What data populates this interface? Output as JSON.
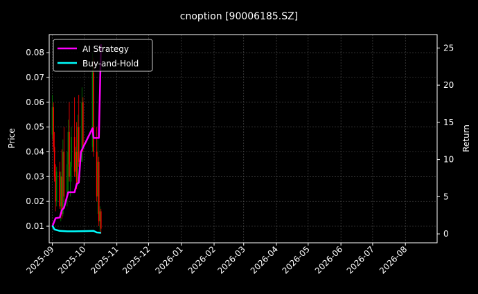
{
  "chart_data": {
    "type": "candlestick+line",
    "title": "cnoption [90006185.SZ]",
    "ylabel_left": "Price",
    "ylabel_right": "Return",
    "xlim": [
      "2025-08-29",
      "2026-08-31"
    ],
    "ylim_left": [
      0.0033,
      0.0873
    ],
    "ylim_right": [
      -1.2,
      26.8
    ],
    "grid": true,
    "legend_position": "top-left",
    "x_ticks": [
      "2025-09",
      "2025-10",
      "2025-11",
      "2025-12",
      "2026-01",
      "2026-02",
      "2026-03",
      "2026-04",
      "2026-05",
      "2026-06",
      "2026-07",
      "2026-08"
    ],
    "y_ticks_left": [
      "0.01",
      "0.02",
      "0.03",
      "0.04",
      "0.05",
      "0.06",
      "0.07",
      "0.08"
    ],
    "y_ticks_right": [
      "0",
      "5",
      "10",
      "15",
      "20",
      "25"
    ],
    "candles": [
      [
        "2025-09-01",
        0.047,
        0.063,
        0.045,
        0.058
      ],
      [
        "2025-09-02",
        0.058,
        0.06,
        0.04,
        0.042
      ],
      [
        "2025-09-03",
        0.042,
        0.048,
        0.028,
        0.03
      ],
      [
        "2025-09-04",
        0.03,
        0.035,
        0.016,
        0.02
      ],
      [
        "2025-09-05",
        0.02,
        0.034,
        0.018,
        0.032
      ],
      [
        "2025-09-08",
        0.032,
        0.036,
        0.017,
        0.018
      ],
      [
        "2025-09-09",
        0.018,
        0.032,
        0.012,
        0.03
      ],
      [
        "2025-09-10",
        0.03,
        0.041,
        0.013,
        0.015
      ],
      [
        "2025-09-11",
        0.015,
        0.045,
        0.014,
        0.04
      ],
      [
        "2025-09-12",
        0.04,
        0.05,
        0.02,
        0.022
      ],
      [
        "2025-09-15",
        0.022,
        0.04,
        0.018,
        0.035
      ],
      [
        "2025-09-16",
        0.035,
        0.053,
        0.024,
        0.048
      ],
      [
        "2025-09-17",
        0.048,
        0.06,
        0.028,
        0.03
      ],
      [
        "2025-09-18",
        0.03,
        0.036,
        0.022,
        0.034
      ],
      [
        "2025-09-19",
        0.034,
        0.05,
        0.028,
        0.046
      ],
      [
        "2025-09-22",
        0.046,
        0.062,
        0.03,
        0.032
      ],
      [
        "2025-09-23",
        0.032,
        0.042,
        0.03,
        0.04
      ],
      [
        "2025-09-24",
        0.04,
        0.052,
        0.025,
        0.027
      ],
      [
        "2025-09-25",
        0.027,
        0.055,
        0.026,
        0.05
      ],
      [
        "2025-09-26",
        0.05,
        0.063,
        0.034,
        0.036
      ],
      [
        "2025-09-29",
        0.036,
        0.066,
        0.036,
        0.06
      ],
      [
        "2025-09-30",
        0.06,
        0.062,
        0.04,
        0.042
      ],
      [
        "2025-10-09",
        0.042,
        0.08,
        0.04,
        0.072
      ],
      [
        "2025-10-10",
        0.072,
        0.078,
        0.038,
        0.04
      ],
      [
        "2025-10-13",
        0.04,
        0.05,
        0.02,
        0.022
      ],
      [
        "2025-10-14",
        0.022,
        0.045,
        0.015,
        0.036
      ],
      [
        "2025-10-15",
        0.036,
        0.038,
        0.01,
        0.012
      ],
      [
        "2025-10-16",
        0.012,
        0.018,
        0.008,
        0.016
      ],
      [
        "2025-10-17",
        0.016,
        0.017,
        0.007,
        0.009
      ]
    ],
    "candle_colors": {
      "up": "#008000",
      "down": "#ff0000"
    },
    "series": [
      {
        "name": "AI Strategy",
        "color": "#ff00ff",
        "x": [
          "2025-09-01",
          "2025-09-04",
          "2025-09-08",
          "2025-09-10",
          "2025-09-12",
          "2025-09-16",
          "2025-09-22",
          "2025-09-24",
          "2025-09-26",
          "2025-09-28",
          "2025-09-30",
          "2025-10-09",
          "2025-10-10",
          "2025-10-15",
          "2025-10-17"
        ],
        "y": [
          1.0,
          2.1,
          2.2,
          3.2,
          3.5,
          5.6,
          5.6,
          6.7,
          6.9,
          11.0,
          11.6,
          14.2,
          12.9,
          12.9,
          25.5
        ]
      },
      {
        "name": "Buy-and-Hold",
        "color": "#00ffff",
        "x": [
          "2025-09-01",
          "2025-09-03",
          "2025-09-08",
          "2025-09-15",
          "2025-09-22",
          "2025-10-10",
          "2025-10-13",
          "2025-10-17"
        ],
        "y": [
          1.1,
          0.6,
          0.4,
          0.35,
          0.35,
          0.4,
          0.2,
          0.15
        ]
      }
    ]
  }
}
